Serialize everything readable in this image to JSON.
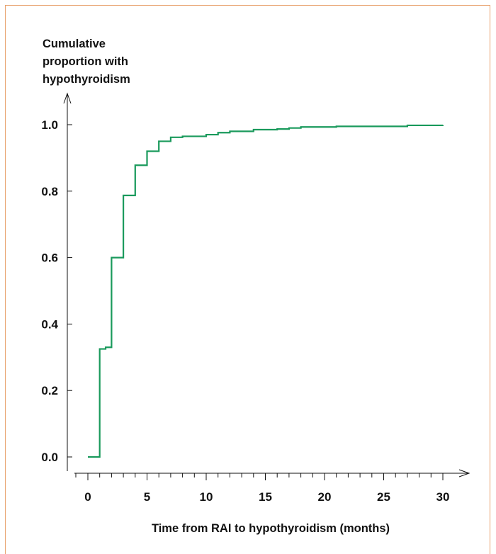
{
  "chart_data": {
    "type": "line",
    "step": true,
    "ylabel": "Cumulative\nproportion with\nhypothyroidism",
    "xlabel": "Time from RAI to hypothyroidism (months)",
    "xlim": [
      0,
      30
    ],
    "ylim": [
      0,
      1
    ],
    "x_major_ticks": [
      0,
      5,
      10,
      15,
      20,
      25,
      30
    ],
    "x_major_tick_labels": [
      "0",
      "5",
      "10",
      "15",
      "20",
      "25",
      "30"
    ],
    "x_minor_ticks": [
      1,
      2,
      3,
      4,
      6,
      7,
      8,
      9,
      11,
      12,
      13,
      14,
      16,
      17,
      18,
      19,
      21,
      22,
      23,
      24,
      26,
      27,
      28,
      29
    ],
    "y_ticks": [
      0.0,
      0.2,
      0.4,
      0.6,
      0.8,
      1.0
    ],
    "y_tick_labels": [
      "0.0",
      "0.2",
      "0.4",
      "0.6",
      "0.8",
      "1.0"
    ],
    "grid": false,
    "line_color": "#1a9a5c",
    "series": [
      {
        "x": [
          0,
          1,
          1.5,
          2,
          3,
          4,
          5,
          6,
          7,
          8,
          10,
          11,
          12,
          14,
          16,
          17,
          18,
          21,
          27,
          30
        ],
        "y": [
          0.0,
          0.325,
          0.33,
          0.6,
          0.787,
          0.878,
          0.92,
          0.95,
          0.962,
          0.965,
          0.97,
          0.976,
          0.98,
          0.985,
          0.987,
          0.99,
          0.993,
          0.995,
          0.998,
          0.999
        ]
      }
    ]
  }
}
